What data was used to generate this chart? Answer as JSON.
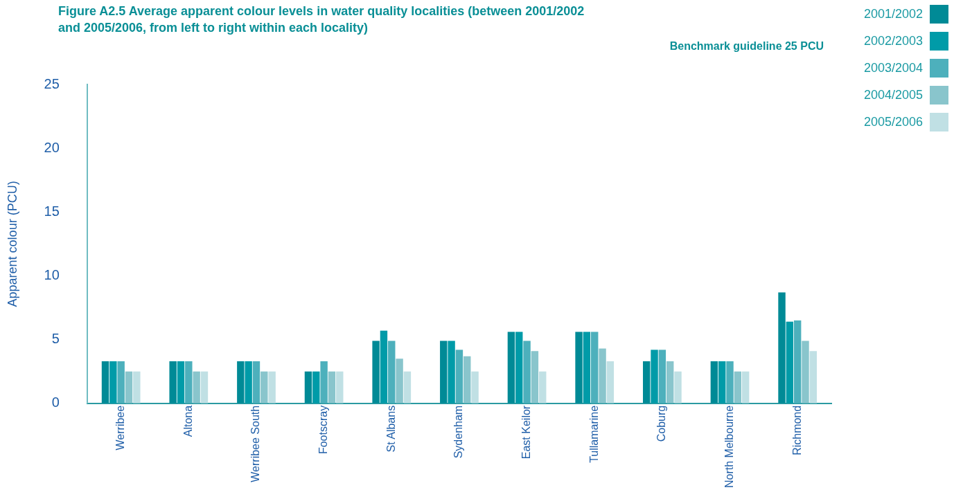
{
  "chart_data": {
    "type": "bar",
    "title": "Figure A2.5 Average apparent colour levels in water quality localities (between 2001/2002 and 2005/2006, from left to right within each locality)",
    "ylabel": "Apparent colour (PCU)",
    "annotations": [
      "Benchmark guideline 25 PCU"
    ],
    "categories": [
      "Werribee",
      "Altona",
      "Werribee South",
      "Footscray",
      "St Albans",
      "Sydenham",
      "East Keilor",
      "Tullamarine",
      "Coburg",
      "North Melbourne",
      "Richmond"
    ],
    "series": [
      {
        "name": "2001/2002",
        "color": "#008a96",
        "values": [
          3.3,
          3.3,
          3.3,
          2.5,
          4.9,
          4.9,
          5.6,
          5.6,
          3.3,
          3.3,
          8.7
        ]
      },
      {
        "name": "2002/2003",
        "color": "#009ba8",
        "values": [
          3.3,
          3.3,
          3.3,
          2.5,
          5.7,
          4.9,
          5.6,
          5.6,
          4.2,
          3.3,
          6.4
        ]
      },
      {
        "name": "2003/2004",
        "color": "#4db0bc",
        "values": [
          3.3,
          3.3,
          3.3,
          3.3,
          4.9,
          4.2,
          4.9,
          5.6,
          4.2,
          3.3,
          6.5
        ]
      },
      {
        "name": "2004/2005",
        "color": "#89c5cc",
        "values": [
          2.5,
          2.5,
          2.5,
          2.5,
          3.5,
          3.7,
          4.1,
          4.3,
          3.3,
          2.5,
          4.9
        ]
      },
      {
        "name": "2005/2006",
        "color": "#c0e0e4",
        "values": [
          2.5,
          2.5,
          2.5,
          2.5,
          2.5,
          2.5,
          2.5,
          3.3,
          2.5,
          2.5,
          4.1
        ]
      }
    ],
    "ylim": [
      0,
      25
    ],
    "yticks": [
      0,
      5,
      10,
      15,
      20,
      25
    ],
    "grid": false,
    "legend": "top right"
  }
}
